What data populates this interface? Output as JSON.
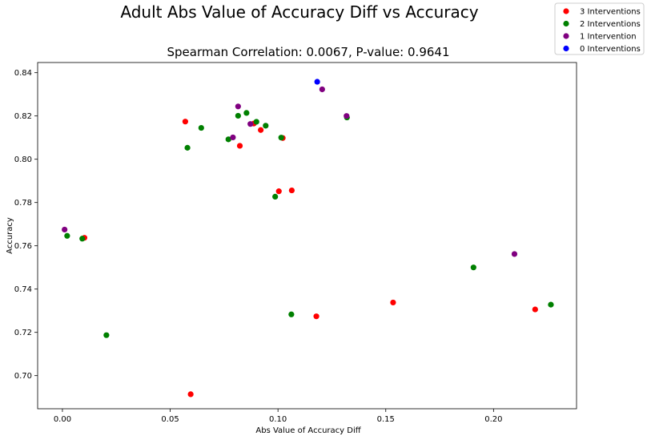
{
  "chart_data": {
    "type": "scatter",
    "suptitle": "Adult Abs Value of Accuracy Diff vs Accuracy",
    "title": "Spearman Correlation: 0.0067, P-value: 0.9641",
    "xlabel": "Abs Value of Accuracy Diff",
    "ylabel": "Accuracy",
    "xlim": [
      -0.0115,
      0.2385
    ],
    "ylim": [
      0.6847,
      0.8447
    ],
    "xticks": [
      0.0,
      0.05,
      0.1,
      0.15,
      0.2
    ],
    "xtick_labels": [
      "0.00",
      "0.05",
      "0.10",
      "0.15",
      "0.20"
    ],
    "yticks": [
      0.7,
      0.72,
      0.74,
      0.76,
      0.78,
      0.8,
      0.82,
      0.84
    ],
    "ytick_labels": [
      "0.70",
      "0.72",
      "0.74",
      "0.76",
      "0.78",
      "0.80",
      "0.82",
      "0.84"
    ],
    "grid": false,
    "legend_position": "top-right (figure)",
    "series": [
      {
        "name": "3 Interventions",
        "color": "#ff0000",
        "points": [
          [
            0.057,
            0.8174
          ],
          [
            0.0102,
            0.7637
          ],
          [
            0.0595,
            0.6914
          ],
          [
            0.0823,
            0.8062
          ],
          [
            0.0888,
            0.8165
          ],
          [
            0.092,
            0.8135
          ],
          [
            0.1022,
            0.8098
          ],
          [
            0.1004,
            0.7852
          ],
          [
            0.1064,
            0.7856
          ],
          [
            0.1178,
            0.7274
          ],
          [
            0.1534,
            0.7338
          ],
          [
            0.2193,
            0.7306
          ]
        ]
      },
      {
        "name": "2 Interventions",
        "color": "#008000",
        "points": [
          [
            0.0022,
            0.7646
          ],
          [
            0.0092,
            0.7633
          ],
          [
            0.0204,
            0.7187
          ],
          [
            0.058,
            0.8053
          ],
          [
            0.0644,
            0.8145
          ],
          [
            0.077,
            0.8092
          ],
          [
            0.0815,
            0.8201
          ],
          [
            0.0854,
            0.8214
          ],
          [
            0.09,
            0.8173
          ],
          [
            0.0943,
            0.8155
          ],
          [
            0.1015,
            0.81
          ],
          [
            0.0987,
            0.7827
          ],
          [
            0.1062,
            0.7283
          ],
          [
            0.132,
            0.8193
          ],
          [
            0.1907,
            0.75
          ],
          [
            0.2266,
            0.7328
          ]
        ]
      },
      {
        "name": "1 Intervention",
        "color": "#800080",
        "points": [
          [
            0.001,
            0.7675
          ],
          [
            0.0791,
            0.8101
          ],
          [
            0.0815,
            0.8244
          ],
          [
            0.0872,
            0.8163
          ],
          [
            0.1205,
            0.8323
          ],
          [
            0.1318,
            0.82
          ],
          [
            0.2097,
            0.7562
          ]
        ]
      },
      {
        "name": "0 Interventions",
        "color": "#0000ff",
        "points": [
          [
            0.1182,
            0.8358
          ]
        ]
      }
    ]
  }
}
